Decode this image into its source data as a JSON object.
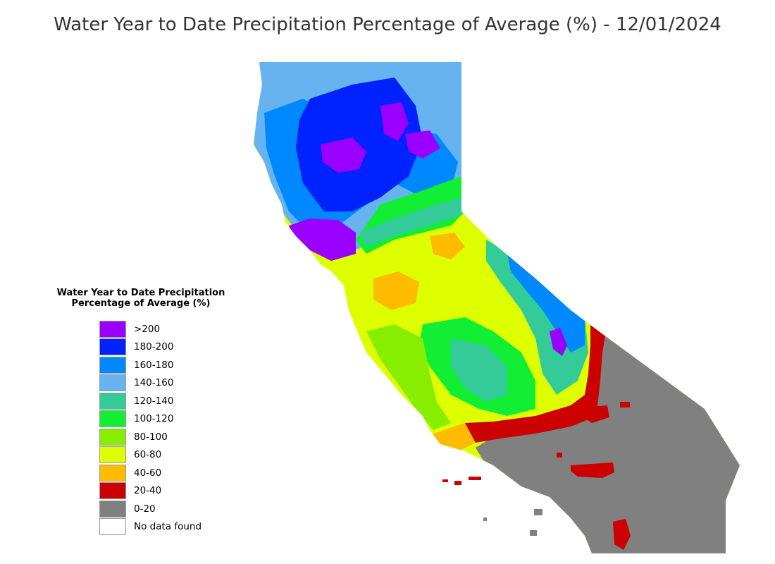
{
  "title": "Water Year to Date Precipitation Percentage of Average (%) - 12/01/2024",
  "legend": {
    "title_line1": "Water Year to Date Precipitation",
    "title_line2": "Percentage of Average (%)",
    "items": [
      {
        "label": ">200",
        "color": "#9900ff"
      },
      {
        "label": "180-200",
        "color": "#0022ff"
      },
      {
        "label": "160-180",
        "color": "#0088ff"
      },
      {
        "label": "140-160",
        "color": "#66b3f0"
      },
      {
        "label": "120-140",
        "color": "#33cc99"
      },
      {
        "label": "100-120",
        "color": "#11ee33"
      },
      {
        "label": "80-100",
        "color": "#88ee00"
      },
      {
        "label": "60-80",
        "color": "#ddff00"
      },
      {
        "label": "40-60",
        "color": "#ffbb00"
      },
      {
        "label": "20-40",
        "color": "#cc0000"
      },
      {
        "label": "0-20",
        "color": "#808080"
      },
      {
        "label": "No data found",
        "color": "#ffffff"
      }
    ]
  }
}
